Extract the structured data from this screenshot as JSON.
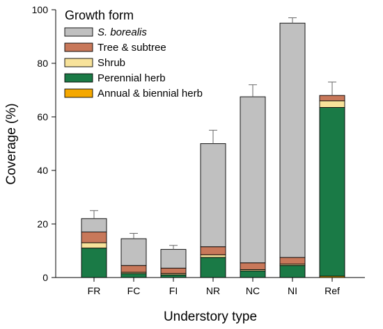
{
  "chart_data": {
    "type": "bar",
    "stacked": true,
    "xlabel": "Understory type",
    "ylabel": "Coverage (%)",
    "ylim": [
      0,
      100
    ],
    "yticks": [
      0,
      20,
      40,
      60,
      80,
      100
    ],
    "grid": false,
    "legend_title": "Growth form",
    "legend_position": "top-left",
    "categories": [
      "FR",
      "FC",
      "FI",
      "NR",
      "NC",
      "NI",
      "Ref"
    ],
    "series": [
      {
        "name": "Annual & biennial herb",
        "color": "#f5a800",
        "values": [
          0,
          0,
          0,
          0,
          0,
          0,
          0.5
        ]
      },
      {
        "name": "Perennial herb",
        "color": "#1a7a46",
        "values": [
          11,
          1.5,
          1.0,
          7.5,
          2.5,
          4.5,
          63
        ]
      },
      {
        "name": "Shrub",
        "color": "#f7e29a",
        "values": [
          2,
          0.5,
          0.5,
          1.0,
          0.5,
          0.5,
          2.5
        ]
      },
      {
        "name": "Tree & subtree",
        "color": "#c8785a",
        "values": [
          4,
          2.5,
          2.0,
          3.0,
          2.5,
          2.5,
          2
        ]
      },
      {
        "name": "S. borealis",
        "color": "#c0c0c0",
        "values": [
          5,
          10,
          7,
          38.5,
          62,
          87.5,
          0
        ]
      }
    ],
    "totals": [
      22,
      14.5,
      10.5,
      50,
      67.5,
      95,
      68
    ],
    "error_upper": [
      25,
      16.5,
      12,
      55,
      72,
      97,
      73
    ]
  }
}
